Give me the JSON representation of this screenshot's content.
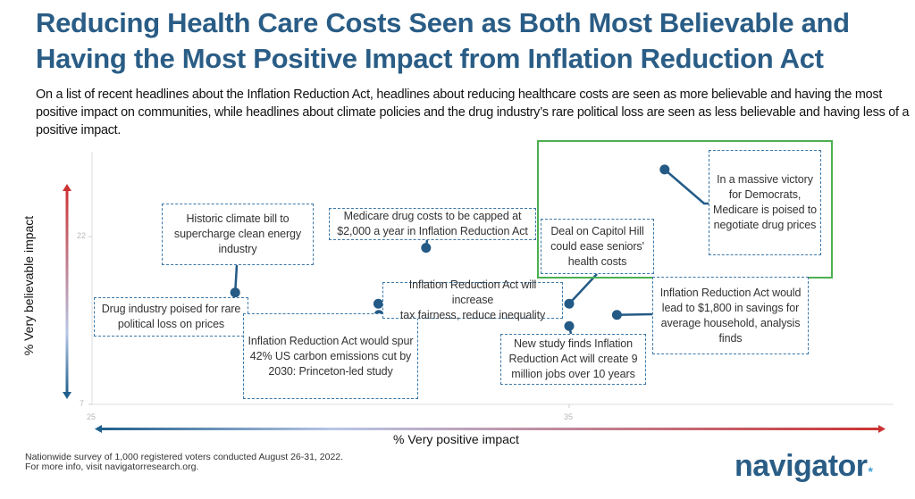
{
  "header": {
    "title_line1": "Reducing Health Care Costs Seen as Both Most Believable and",
    "title_line2": "Having the Most Positive Impact from Inflation Reduction Act",
    "subtitle": "On a list of recent headlines about the Inflation Reduction Act, headlines about reducing healthcare costs are seen as more believable and having the most positive impact on communities, while headlines about climate policies and the drug industry’s rare political loss are seen as less believable and having less of a positive impact."
  },
  "chart_data": {
    "type": "scatter",
    "title": "Reducing Health Care Costs Seen as Both Most Believable and Having the Most Positive Impact from Inflation Reduction Act",
    "xlabel": "% Very positive impact",
    "ylabel": "% Very believable impact",
    "xlim": [
      25,
      42
    ],
    "ylim": [
      7,
      30
    ],
    "x_ticks": [
      25,
      35
    ],
    "y_ticks": [
      7,
      22
    ],
    "grid": false,
    "legend": "none",
    "points": [
      {
        "label": "Historic climate bill to supercharge clean energy industry",
        "x": 28,
        "y": 17
      },
      {
        "label": "Drug industry poised for rare political loss on prices",
        "x": 29,
        "y": 14
      },
      {
        "label": "Inflation Reduction Act would spur 42% US carbon emissions cut by 2030: Princeton-led study",
        "x": 30,
        "y": 15
      },
      {
        "label": "Inflation Reduction Act will increase tax fairness, reduce inequality",
        "x": 31,
        "y": 16
      },
      {
        "label": "Medicare drug costs to be capped at $2,000 a year in Inflation Reduction Act",
        "x": 32,
        "y": 21
      },
      {
        "label": "Deal on Capitol Hill could ease seniors' health costs",
        "x": 35,
        "y": 16
      },
      {
        "label": "New study finds Inflation Reduction Act will create 9 million jobs over 10 years",
        "x": 35,
        "y": 14
      },
      {
        "label": "Inflation Reduction Act would lead to $1,800 in savings for average household, analysis finds",
        "x": 36,
        "y": 15
      },
      {
        "label": "In a massive victory for Democrats, Medicare is poised to negotiate drug prices",
        "x": 37,
        "y": 28
      }
    ],
    "highlighted": [
      "Deal on Capitol Hill could ease seniors' health costs",
      "In a massive victory for Democrats, Medicare is poised to negotiate drug prices"
    ],
    "colors": {
      "point": "#235a86",
      "label_border": "#3c78a8",
      "highlight": "#4caf50",
      "arrow_low": "#1f5f8b",
      "arrow_mid": "#b7c6e6",
      "arrow_high": "#cc3333"
    }
  },
  "labels": [
    {
      "lines": [
        "Historic climate bill to",
        "supercharge clean energy",
        "industry"
      ]
    },
    {
      "lines": [
        "Drug industry poised for rare",
        "political loss on prices"
      ]
    },
    {
      "lines": [
        "Inflation Reduction Act would spur",
        "42% US carbon emissions cut by",
        "2030: Princeton-led study"
      ]
    },
    {
      "lines": [
        "Inflation Reduction Act will increase",
        "tax fairness, reduce inequality"
      ]
    },
    {
      "lines": [
        "Medicare drug costs to be capped at",
        "$2,000 a year in Inflation Reduction Act"
      ]
    },
    {
      "lines": [
        "Deal on Capitol Hill",
        "could ease seniors'",
        "health costs"
      ]
    },
    {
      "lines": [
        "New study finds Inflation",
        "Reduction Act will create 9",
        "million jobs over 10 years"
      ]
    },
    {
      "lines": [
        "Inflation Reduction Act would",
        "lead to $1,800 in savings for",
        "average household, analysis",
        "finds"
      ]
    },
    {
      "lines": [
        "In a massive victory",
        "for Democrats,",
        "Medicare is poised to",
        "negotiate drug prices"
      ]
    }
  ],
  "axes": {
    "xlabel": "% Very positive impact",
    "ylabel": "% Very believable impact",
    "x_tick_labels": [
      "25",
      "35"
    ],
    "y_tick_labels": [
      "7",
      "22"
    ]
  },
  "footer": {
    "note_line1": "Nationwide survey of 1,000 registered voters conducted August 26-31, 2022.",
    "note_line2": "For more info, visit navigatorresearch.org.",
    "logo_text": "navigator",
    "logo_mark": "*"
  }
}
